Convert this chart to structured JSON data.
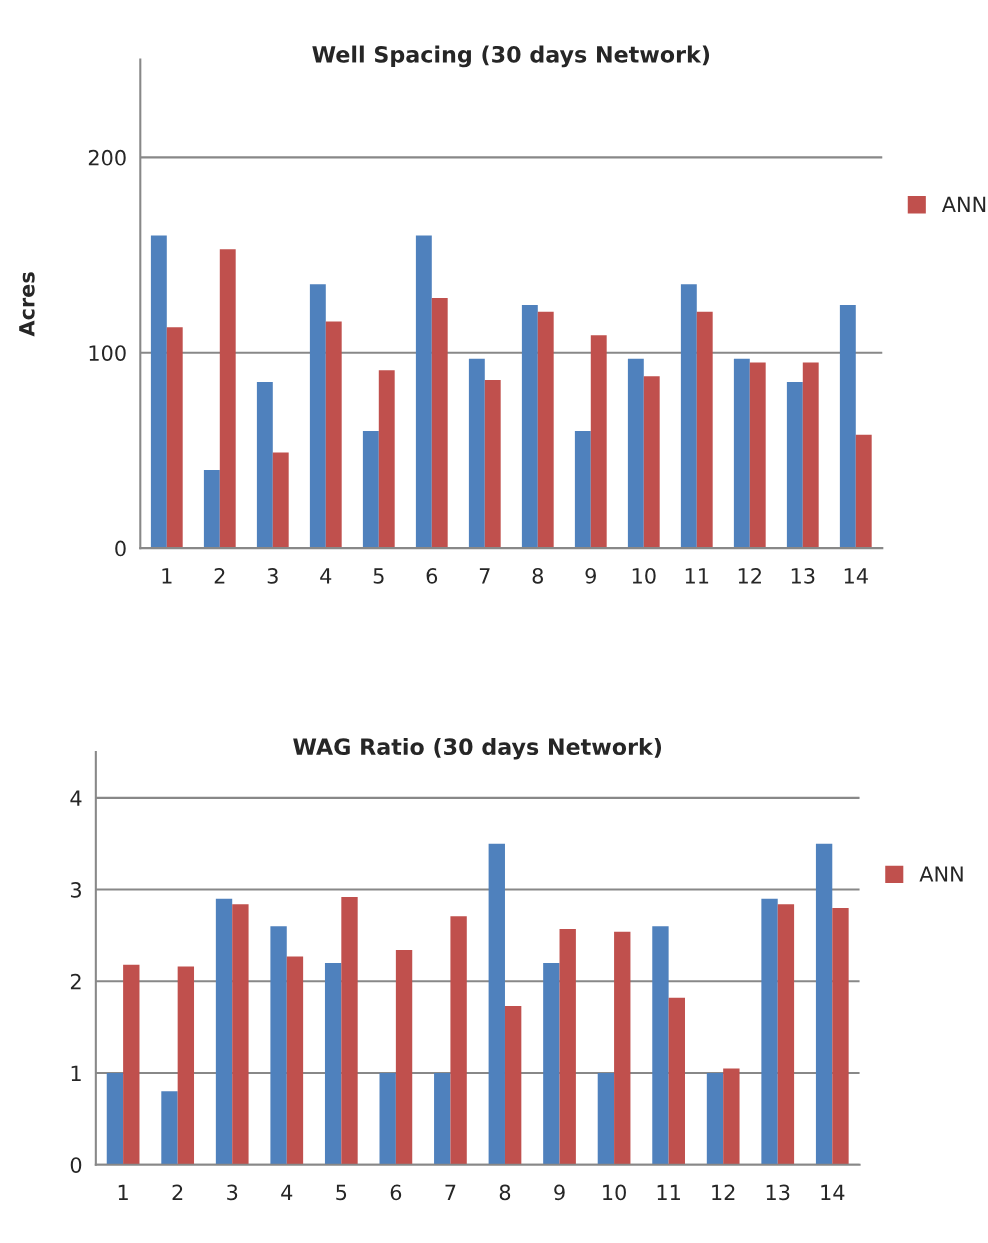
{
  "chart_data": [
    {
      "type": "bar",
      "title": "Well Spacing (30 days Network)",
      "ylabel": "Acres",
      "categories": [
        "1",
        "2",
        "3",
        "4",
        "5",
        "6",
        "7",
        "8",
        "9",
        "10",
        "11",
        "12",
        "13",
        "14"
      ],
      "ylim": [
        0,
        250
      ],
      "yticks": [
        0,
        100,
        200
      ],
      "grid": "y",
      "legend": "right",
      "series": [
        {
          "color": "#4f81bd",
          "values": [
            160,
            40,
            85,
            135,
            60,
            160,
            97,
            124.5,
            60,
            97,
            135,
            97,
            85,
            124.5
          ]
        },
        {
          "name": "ANN",
          "color": "#c0504d",
          "values": [
            113,
            153,
            49,
            116,
            91,
            128,
            86,
            121,
            109,
            88,
            121,
            95,
            95,
            58
          ]
        }
      ]
    },
    {
      "type": "bar",
      "title": "WAG Ratio (30 days Network)",
      "categories": [
        "1",
        "2",
        "3",
        "4",
        "5",
        "6",
        "7",
        "8",
        "9",
        "10",
        "11",
        "12",
        "13",
        "14"
      ],
      "ylim": [
        0,
        4.5
      ],
      "yticks": [
        0,
        1,
        2,
        3,
        4
      ],
      "grid": "y",
      "legend": "right",
      "series": [
        {
          "color": "#4f81bd",
          "values": [
            1,
            0.8,
            2.9,
            2.6,
            2.2,
            1,
            1,
            3.5,
            2.2,
            1,
            2.6,
            1,
            2.9,
            3.5
          ]
        },
        {
          "name": "ANN",
          "color": "#c0504d",
          "values": [
            2.18,
            2.16,
            2.84,
            2.27,
            2.92,
            2.34,
            2.71,
            1.73,
            2.57,
            2.54,
            1.82,
            1.05,
            2.84,
            2.8
          ]
        }
      ]
    }
  ]
}
